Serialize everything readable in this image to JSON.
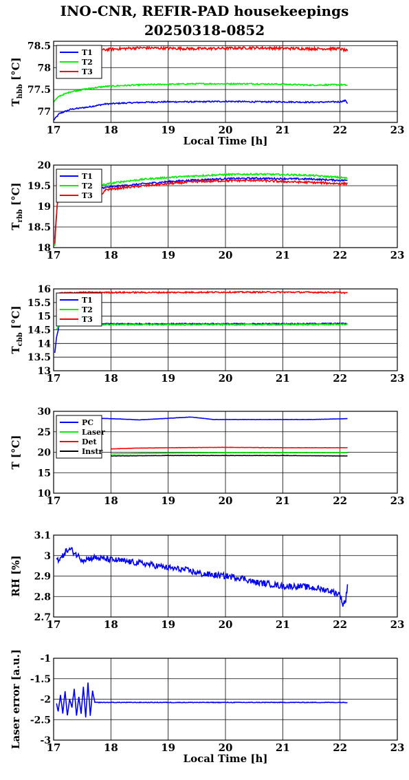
{
  "title_line1": "INO-CNR, REFIR-PAD housekeepings",
  "title_line2": "20250318-0852",
  "chart_data": [
    {
      "type": "line",
      "xlabel": "Local Time [h]",
      "ylabel_main": "T",
      "ylabel_sub": "hbb",
      "ylabel_unit": " [°C]",
      "xlim": [
        17,
        23
      ],
      "ylim": [
        76.75,
        78.6
      ],
      "xticks": [
        17,
        18,
        19,
        20,
        21,
        22,
        23
      ],
      "yticks": [
        77,
        77.5,
        78,
        78.5
      ],
      "ytick_labels": [
        "77",
        "77.5",
        "78",
        "78.5"
      ],
      "grid": true,
      "legend_position": "top-left",
      "series": [
        {
          "name": "T1",
          "color": "#0000ff",
          "noise": 0.015,
          "x": [
            17.0,
            17.1,
            17.3,
            17.6,
            17.9,
            18.2,
            18.6,
            19.0,
            19.5,
            20.0,
            20.5,
            21.0,
            21.5,
            22.0,
            22.1,
            22.13
          ],
          "y": [
            76.8,
            76.95,
            77.05,
            77.1,
            77.17,
            77.19,
            77.21,
            77.22,
            77.22,
            77.23,
            77.22,
            77.22,
            77.21,
            77.22,
            77.25,
            77.18
          ]
        },
        {
          "name": "T2",
          "color": "#00ee00",
          "noise": 0.015,
          "x": [
            17.0,
            17.1,
            17.3,
            17.6,
            17.9,
            18.2,
            18.6,
            19.0,
            19.5,
            20.0,
            20.5,
            21.0,
            21.5,
            22.0,
            22.13
          ],
          "y": [
            77.22,
            77.35,
            77.45,
            77.52,
            77.57,
            77.59,
            77.61,
            77.62,
            77.63,
            77.63,
            77.63,
            77.62,
            77.6,
            77.61,
            77.6
          ]
        },
        {
          "name": "T3",
          "color": "#ff0000",
          "noise": 0.03,
          "x": [
            17.85,
            18.0,
            18.5,
            19.0,
            19.5,
            20.0,
            20.5,
            21.0,
            21.5,
            22.0,
            22.13
          ],
          "y": [
            78.4,
            78.42,
            78.45,
            78.44,
            78.43,
            78.44,
            78.45,
            78.44,
            78.43,
            78.43,
            78.38
          ]
        }
      ]
    },
    {
      "type": "line",
      "xlabel": "",
      "ylabel_main": "T",
      "ylabel_sub": "rbb",
      "ylabel_unit": " [°C]",
      "xlim": [
        17,
        23
      ],
      "ylim": [
        18,
        20
      ],
      "xticks": [
        17,
        18,
        19,
        20,
        21,
        22,
        23
      ],
      "yticks": [
        18,
        18.5,
        19,
        19.5,
        20
      ],
      "ytick_labels": [
        "18",
        "18.5",
        "19",
        "19.5",
        "20"
      ],
      "grid": true,
      "legend_position": "top-left",
      "series": [
        {
          "name": "T1",
          "color": "#0000ff",
          "noise": 0.02,
          "x": [
            17.02,
            17.06,
            17.1,
            17.85,
            18.2,
            18.6,
            19.0,
            19.5,
            20.0,
            20.5,
            21.0,
            21.5,
            22.0,
            22.13
          ],
          "y": [
            18.2,
            19.0,
            19.5,
            19.45,
            19.5,
            19.55,
            19.6,
            19.64,
            19.67,
            19.68,
            19.67,
            19.66,
            19.63,
            19.63
          ]
        },
        {
          "name": "T2",
          "color": "#00ee00",
          "noise": 0.02,
          "x": [
            17.02,
            17.06,
            17.1,
            17.85,
            18.2,
            18.6,
            19.0,
            19.5,
            20.0,
            20.5,
            21.0,
            21.5,
            22.0,
            22.13
          ],
          "y": [
            18.05,
            19.0,
            19.55,
            19.52,
            19.6,
            19.66,
            19.7,
            19.74,
            19.77,
            19.78,
            19.77,
            19.75,
            19.7,
            19.68
          ]
        },
        {
          "name": "T3",
          "color": "#ff0000",
          "noise": 0.025,
          "x": [
            17.02,
            17.06,
            17.1,
            17.85,
            17.9,
            18.2,
            18.6,
            19.0,
            19.5,
            20.0,
            20.5,
            21.0,
            21.5,
            22.0,
            22.13
          ],
          "y": [
            18.1,
            19.0,
            19.4,
            19.3,
            19.4,
            19.45,
            19.5,
            19.55,
            19.6,
            19.62,
            19.63,
            19.6,
            19.58,
            19.55,
            19.55
          ]
        }
      ]
    },
    {
      "type": "line",
      "xlabel": "",
      "ylabel_main": "T",
      "ylabel_sub": "cbb",
      "ylabel_unit": " [°C]",
      "xlim": [
        17,
        23
      ],
      "ylim": [
        13,
        16
      ],
      "xticks": [
        17,
        18,
        19,
        20,
        21,
        22,
        23
      ],
      "yticks": [
        13,
        13.5,
        14,
        14.5,
        15,
        15.5,
        16
      ],
      "ytick_labels": [
        "13",
        "13.5",
        "14",
        "14.5",
        "15",
        "15.5",
        "16"
      ],
      "grid": true,
      "legend_position": "top-left",
      "series": [
        {
          "name": "T1",
          "color": "#0000ff",
          "noise": 0.02,
          "x": [
            17.02,
            17.05,
            17.1,
            17.5,
            18.0,
            19.0,
            20.0,
            21.0,
            22.0,
            22.13
          ],
          "y": [
            13.65,
            14.2,
            14.7,
            14.72,
            14.72,
            14.72,
            14.72,
            14.72,
            14.73,
            14.73
          ]
        },
        {
          "name": "T2",
          "color": "#00ee00",
          "noise": 0.025,
          "x": [
            17.05,
            17.1,
            17.5,
            18.0,
            19.0,
            20.0,
            21.0,
            22.0,
            22.13
          ],
          "y": [
            14.5,
            14.68,
            14.7,
            14.69,
            14.69,
            14.69,
            14.69,
            14.7,
            14.7
          ]
        },
        {
          "name": "T3",
          "color": "#ff0000",
          "noise": 0.025,
          "x": [
            17.1,
            17.5,
            18.0,
            19.0,
            20.0,
            21.0,
            22.0,
            22.13
          ],
          "y": [
            15.85,
            15.87,
            15.87,
            15.87,
            15.88,
            15.88,
            15.87,
            15.85
          ]
        }
      ]
    },
    {
      "type": "line",
      "xlabel": "",
      "ylabel_main": "T [°C]",
      "ylabel_sub": "",
      "ylabel_unit": "",
      "xlim": [
        17,
        23
      ],
      "ylim": [
        10,
        30
      ],
      "xticks": [
        17,
        18,
        19,
        20,
        21,
        22,
        23
      ],
      "yticks": [
        10,
        15,
        20,
        25,
        30
      ],
      "ytick_labels": [
        "10",
        "15",
        "20",
        "25",
        "30"
      ],
      "grid": true,
      "legend_position": "top-left",
      "series": [
        {
          "name": "PC",
          "color": "#0000ff",
          "noise": 0.03,
          "x": [
            17.1,
            17.8,
            18.2,
            18.5,
            19.0,
            19.4,
            19.8,
            20.5,
            21.5,
            22.13
          ],
          "y": [
            28.5,
            28.3,
            28.1,
            27.9,
            28.3,
            28.6,
            28.0,
            28.0,
            28.0,
            28.2
          ]
        },
        {
          "name": "Laser",
          "color": "#00ee00",
          "noise": 0.03,
          "x": [
            18.0,
            19.0,
            20.0,
            21.0,
            22.0,
            22.13
          ],
          "y": [
            19.6,
            19.8,
            19.9,
            19.9,
            19.9,
            19.9
          ]
        },
        {
          "name": "Det",
          "color": "#ff0000",
          "noise": 0.03,
          "x": [
            18.0,
            18.4,
            19.0,
            20.0,
            21.0,
            22.0,
            22.13
          ],
          "y": [
            20.8,
            21.0,
            21.1,
            21.2,
            21.1,
            21.1,
            21.1
          ]
        },
        {
          "name": "Instr",
          "color": "#000000",
          "noise": 0.03,
          "x": [
            18.0,
            19.0,
            20.0,
            21.0,
            22.0,
            22.13
          ],
          "y": [
            19.1,
            19.2,
            19.2,
            19.2,
            19.1,
            19.1
          ]
        }
      ]
    },
    {
      "type": "line",
      "xlabel": "",
      "ylabel_main": "RH [%]",
      "ylabel_sub": "",
      "ylabel_unit": "",
      "xlim": [
        17,
        23
      ],
      "ylim": [
        2.7,
        3.1
      ],
      "xticks": [
        17,
        18,
        19,
        20,
        21,
        22,
        23
      ],
      "yticks": [
        2.7,
        2.8,
        2.9,
        3.0,
        3.1
      ],
      "ytick_labels": [
        "2.7",
        "2.8",
        "2.9",
        "3",
        "3.1"
      ],
      "grid": true,
      "legend_position": "",
      "series": [
        {
          "name": "",
          "color": "#0000ff",
          "noise": 0.015,
          "x": [
            17.05,
            17.15,
            17.2,
            17.3,
            17.5,
            17.7,
            18.0,
            18.3,
            18.6,
            19.0,
            19.3,
            19.6,
            20.0,
            20.3,
            20.5,
            20.8,
            21.0,
            21.3,
            21.6,
            21.8,
            22.0,
            22.05,
            22.1,
            22.13
          ],
          "y": [
            2.98,
            2.99,
            3.02,
            3.03,
            2.98,
            2.99,
            2.98,
            2.97,
            2.96,
            2.94,
            2.93,
            2.91,
            2.9,
            2.89,
            2.87,
            2.86,
            2.85,
            2.85,
            2.84,
            2.83,
            2.81,
            2.76,
            2.78,
            2.86
          ]
        }
      ]
    },
    {
      "type": "line",
      "xlabel": "Local Time [h]",
      "ylabel_main": "Laser error [a.u.]",
      "ylabel_sub": "",
      "ylabel_unit": "",
      "xlim": [
        17,
        23
      ],
      "ylim": [
        -3,
        -1
      ],
      "xticks": [
        17,
        18,
        19,
        20,
        21,
        22,
        23
      ],
      "yticks": [
        -3,
        -2.5,
        -2,
        -1.5,
        -1
      ],
      "ytick_labels": [
        "-3",
        "-2.5",
        "-2",
        "-1.5",
        "-1"
      ],
      "grid": true,
      "legend_position": "",
      "series": [
        {
          "name": "",
          "color": "#0000ff",
          "noise": 0.008,
          "x": [
            17.05,
            17.08,
            17.12,
            17.16,
            17.2,
            17.24,
            17.28,
            17.32,
            17.36,
            17.4,
            17.44,
            17.48,
            17.52,
            17.56,
            17.6,
            17.64,
            17.68,
            17.72,
            18.0,
            19.0,
            20.0,
            21.0,
            22.0,
            22.13
          ],
          "y": [
            -2.1,
            -2.3,
            -1.9,
            -2.35,
            -1.8,
            -2.4,
            -2.0,
            -2.2,
            -1.75,
            -2.4,
            -1.95,
            -2.35,
            -1.7,
            -2.45,
            -1.6,
            -2.4,
            -1.8,
            -2.08,
            -2.08,
            -2.08,
            -2.08,
            -2.08,
            -2.08,
            -2.08
          ]
        }
      ]
    }
  ]
}
